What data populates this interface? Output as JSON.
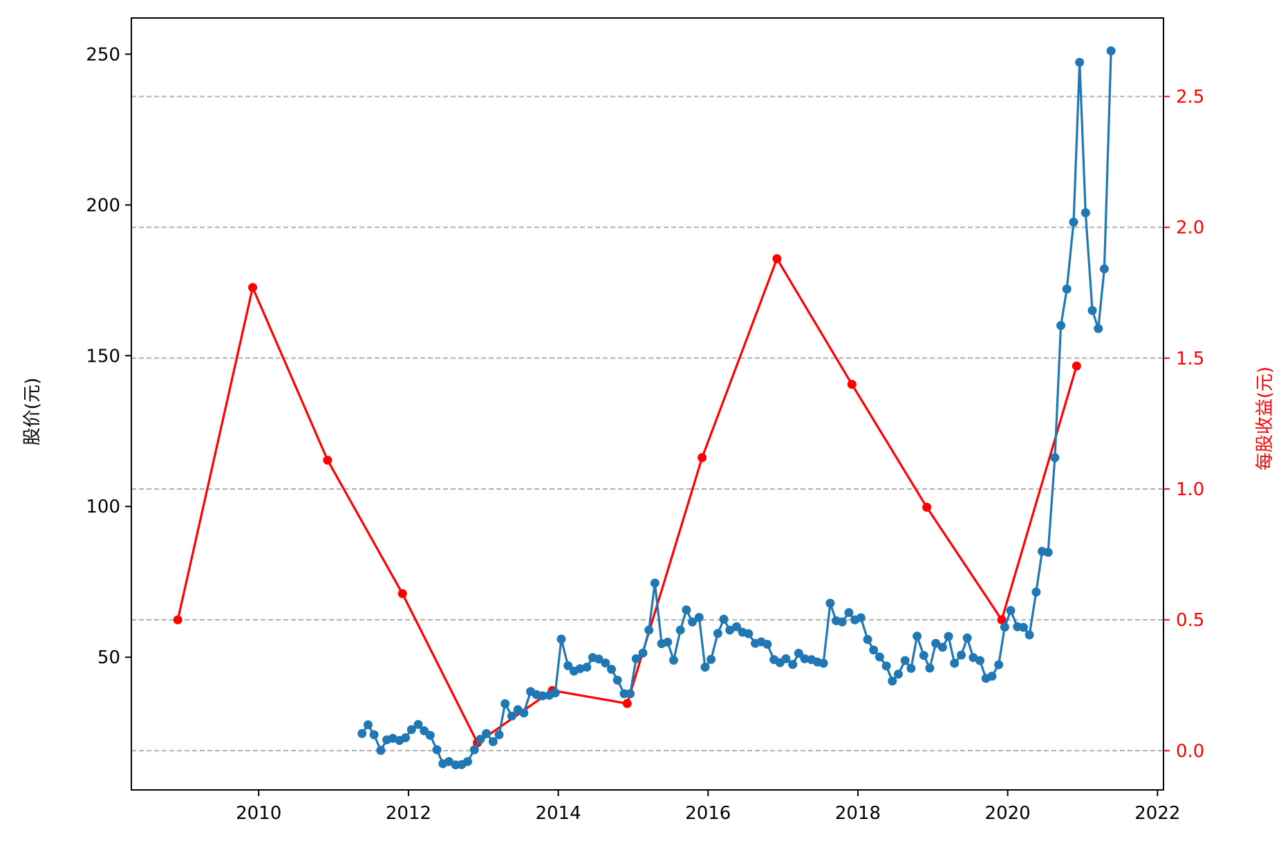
{
  "chart_data": {
    "type": "line",
    "title": "",
    "xlabel": "",
    "ylabel_left": "股价(元)",
    "ylabel_right": "每股收益(元)",
    "xlim": [
      2008.3,
      2022.08
    ],
    "ylim_left": [
      6,
      262
    ],
    "ylim_right": [
      -0.15,
      2.8
    ],
    "xticks": [
      2010,
      2012,
      2014,
      2016,
      2018,
      2020,
      2022
    ],
    "xtick_labels": [
      "2010",
      "2012",
      "2014",
      "2016",
      "2018",
      "2020",
      "2022"
    ],
    "yticks_left": [
      50,
      100,
      150,
      200,
      250
    ],
    "ytick_labels_left": [
      "50",
      "100",
      "150",
      "200",
      "250"
    ],
    "yticks_right": [
      0.0,
      0.5,
      1.0,
      1.5,
      2.0,
      2.5
    ],
    "ytick_labels_right": [
      "0.0",
      "0.5",
      "1.0",
      "1.5",
      "2.0",
      "2.5"
    ],
    "grid": "horizontal dashed lines at right-axis ticks",
    "colors": {
      "price": "#1f77b4",
      "eps": "#ff0000",
      "grid": "#b0b0b0",
      "axis": "#000000"
    },
    "series": [
      {
        "axis": "left",
        "x": [
          2011.38,
          2011.46,
          2011.54,
          2011.63,
          2011.71,
          2011.79,
          2011.88,
          2011.96,
          2012.04,
          2012.13,
          2012.21,
          2012.29,
          2012.38,
          2012.46,
          2012.54,
          2012.63,
          2012.71,
          2012.79,
          2012.88,
          2012.96,
          2013.04,
          2013.13,
          2013.21,
          2013.29,
          2013.38,
          2013.46,
          2013.54,
          2013.63,
          2013.71,
          2013.79,
          2013.88,
          2013.96,
          2014.04,
          2014.13,
          2014.21,
          2014.29,
          2014.38,
          2014.46,
          2014.54,
          2014.63,
          2014.71,
          2014.79,
          2014.88,
          2014.96,
          2015.04,
          2015.13,
          2015.21,
          2015.29,
          2015.38,
          2015.46,
          2015.54,
          2015.63,
          2015.71,
          2015.79,
          2015.88,
          2015.96,
          2016.04,
          2016.13,
          2016.21,
          2016.29,
          2016.38,
          2016.46,
          2016.54,
          2016.63,
          2016.71,
          2016.79,
          2016.88,
          2016.96,
          2017.04,
          2017.13,
          2017.21,
          2017.29,
          2017.38,
          2017.46,
          2017.54,
          2017.63,
          2017.71,
          2017.79,
          2017.88,
          2017.96,
          2018.04,
          2018.13,
          2018.21,
          2018.29,
          2018.38,
          2018.46,
          2018.54,
          2018.63,
          2018.71,
          2018.79,
          2018.88,
          2018.96,
          2019.04,
          2019.13,
          2019.21,
          2019.29,
          2019.38,
          2019.46,
          2019.54,
          2019.63,
          2019.71,
          2019.79,
          2019.88,
          2019.96,
          2020.04,
          2020.13,
          2020.21,
          2020.29,
          2020.38,
          2020.46,
          2020.54,
          2020.63,
          2020.71,
          2020.79,
          2020.88,
          2020.96,
          2021.04,
          2021.13,
          2021.21,
          2021.29,
          2021.38
        ],
        "values": [
          24.7,
          27.6,
          24.3,
          19.1,
          22.6,
          23.1,
          22.4,
          23.3,
          26.0,
          27.7,
          25.6,
          24.1,
          19.3,
          14.7,
          15.4,
          14.3,
          14.4,
          15.4,
          19.3,
          22.8,
          24.7,
          22.0,
          24.3,
          34.6,
          30.5,
          32.6,
          31.5,
          38.6,
          37.6,
          37.2,
          37.4,
          38.2,
          56.0,
          47.2,
          45.4,
          46.2,
          46.7,
          49.9,
          49.4,
          48.1,
          46.0,
          42.4,
          37.9,
          37.9,
          49.5,
          51.4,
          59.0,
          74.6,
          54.5,
          55.0,
          49.0,
          59.0,
          65.7,
          61.7,
          63.2,
          46.7,
          49.3,
          57.9,
          62.6,
          59.0,
          60.1,
          58.3,
          57.8,
          54.6,
          55.1,
          54.3,
          49.2,
          48.2,
          49.5,
          47.6,
          51.3,
          49.5,
          49.2,
          48.4,
          48.0,
          67.9,
          62.1,
          61.7,
          64.8,
          62.4,
          63.1,
          55.9,
          52.4,
          50.1,
          47.1,
          42.1,
          44.4,
          48.9,
          46.3,
          57.0,
          50.6,
          46.4,
          54.6,
          53.3,
          56.9,
          48.0,
          50.7,
          56.4,
          49.9,
          48.9,
          43.0,
          43.7,
          47.5,
          60.0,
          65.5,
          60.1,
          59.9,
          57.4,
          71.6,
          85.1,
          84.8,
          116.2,
          160.0,
          172.1,
          194.3,
          247.3,
          197.4,
          165.0,
          159.0,
          178.8,
          251.1
        ]
      },
      {
        "axis": "right",
        "x": [
          2008.92,
          2009.92,
          2010.92,
          2011.92,
          2012.92,
          2013.92,
          2014.92,
          2015.92,
          2016.92,
          2017.92,
          2018.92,
          2019.92,
          2020.92
        ],
        "values": [
          0.5,
          1.77,
          1.11,
          0.6,
          0.03,
          0.23,
          0.18,
          1.12,
          1.88,
          1.4,
          0.93,
          0.5,
          1.47
        ]
      }
    ]
  }
}
